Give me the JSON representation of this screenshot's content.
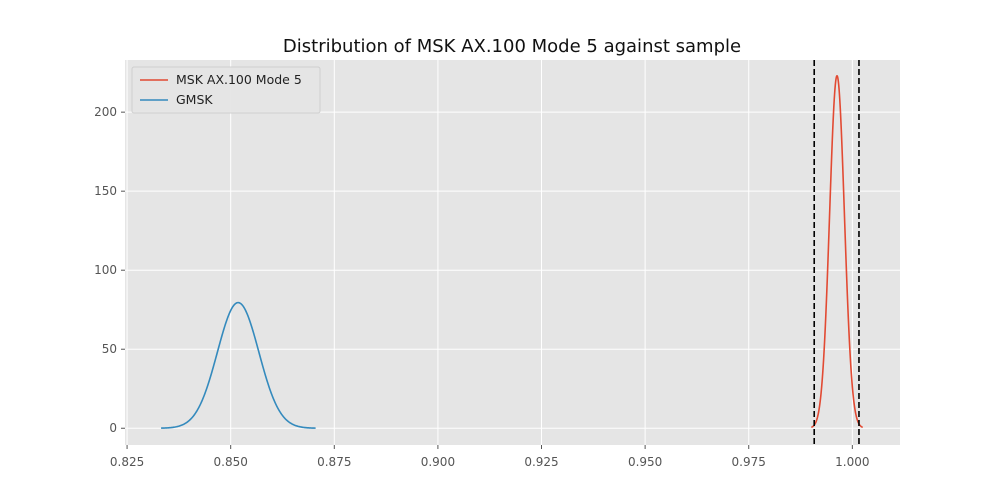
{
  "chart_data": {
    "type": "line",
    "title": "Distribution of MSK AX.100 Mode 5 against sample",
    "xlabel": "",
    "ylabel": "",
    "xlim": [
      0.8245,
      1.0115
    ],
    "ylim": [
      -10.6,
      233
    ],
    "xticks": [
      0.825,
      0.85,
      0.875,
      0.9,
      0.925,
      0.95,
      0.975,
      1.0
    ],
    "xtick_labels": [
      "0.825",
      "0.850",
      "0.875",
      "0.900",
      "0.925",
      "0.950",
      "0.975",
      "1.000"
    ],
    "yticks": [
      0,
      50,
      100,
      150,
      200
    ],
    "ytick_labels": [
      "0",
      "50",
      "100",
      "150",
      "200"
    ],
    "grid": true,
    "legend_position": "top-left",
    "background_color": "#e5e5e5",
    "grid_color": "#ffffff",
    "series": [
      {
        "name": "MSK AX.100 Mode 5",
        "color": "#e24a33",
        "distribution": "normal",
        "mean": 0.9963,
        "std": 0.00179,
        "peak": 223,
        "x_range": [
          0.9901,
          1.0025
        ]
      },
      {
        "name": "GMSK",
        "color": "#348abd",
        "distribution": "normal",
        "mean": 0.8518,
        "std": 0.005,
        "peak": 79.5,
        "x_range": [
          0.8332,
          0.8705
        ]
      }
    ],
    "vertical_lines": [
      {
        "x": 0.9908,
        "style": "dashed",
        "color": "#000000"
      },
      {
        "x": 1.0016,
        "style": "dashed",
        "color": "#000000"
      }
    ]
  }
}
